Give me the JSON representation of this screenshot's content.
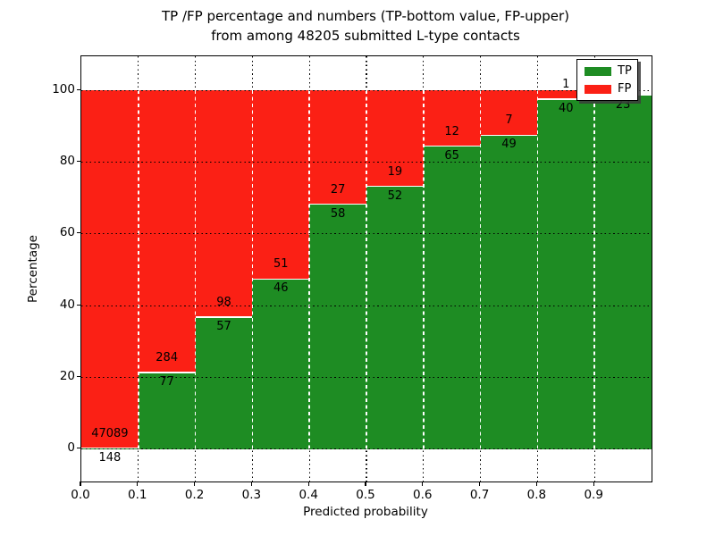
{
  "chart_data": {
    "type": "stacked-bar",
    "title_line1": "TP /FP percentage and numbers (TP-bottom value, FP-upper)",
    "title_line2": "from among 48205 submitted L-type contacts",
    "xlabel": "Predicted probability",
    "ylabel": "Percentage",
    "total_submitted_contacts": 48205,
    "xlim": [
      0,
      1.0
    ],
    "ylim": [
      -9.0,
      109.5
    ],
    "x_ticks": [
      {
        "value": 0.0,
        "label": "0.0"
      },
      {
        "value": 0.1,
        "label": "0.1"
      },
      {
        "value": 0.2,
        "label": "0.2"
      },
      {
        "value": 0.3,
        "label": "0.3"
      },
      {
        "value": 0.4,
        "label": "0.4"
      },
      {
        "value": 0.5,
        "label": "0.5"
      },
      {
        "value": 0.6,
        "label": "0.6"
      },
      {
        "value": 0.7,
        "label": "0.7"
      },
      {
        "value": 0.8,
        "label": "0.8"
      },
      {
        "value": 0.9,
        "label": "0.9"
      }
    ],
    "y_ticks": [
      {
        "value": 0,
        "label": "0"
      },
      {
        "value": 20,
        "label": "20"
      },
      {
        "value": 40,
        "label": "40"
      },
      {
        "value": 60,
        "label": "60"
      },
      {
        "value": 80,
        "label": "80"
      },
      {
        "value": 100,
        "label": "100"
      }
    ],
    "grid": true,
    "legend": {
      "position": "upper-right",
      "entries": [
        {
          "label": "TP",
          "color": "#1e8c23"
        },
        {
          "label": "FP",
          "color": "#fb2015"
        }
      ]
    },
    "colors": {
      "tp": "#1e8c23",
      "fp": "#fb2015",
      "segment_boundary": "#ffffff",
      "grid": "#000000"
    },
    "bins": [
      {
        "range": [
          0.0,
          0.1
        ],
        "tp": 148,
        "fp": 47089,
        "tp_label": "148",
        "fp_label": "47089",
        "tp_pct": 0.31,
        "bar_top_pct": 100
      },
      {
        "range": [
          0.1,
          0.2
        ],
        "tp": 77,
        "fp": 284,
        "tp_label": "77",
        "fp_label": "284",
        "tp_pct": 21.33,
        "bar_top_pct": 100
      },
      {
        "range": [
          0.2,
          0.3
        ],
        "tp": 57,
        "fp": 98,
        "tp_label": "57",
        "fp_label": "98",
        "tp_pct": 36.77,
        "bar_top_pct": 100
      },
      {
        "range": [
          0.3,
          0.4
        ],
        "tp": 46,
        "fp": 51,
        "tp_label": "46",
        "fp_label": "51",
        "tp_pct": 47.42,
        "bar_top_pct": 100
      },
      {
        "range": [
          0.4,
          0.5
        ],
        "tp": 58,
        "fp": 27,
        "tp_label": "58",
        "fp_label": "27",
        "tp_pct": 68.24,
        "bar_top_pct": 100
      },
      {
        "range": [
          0.5,
          0.6
        ],
        "tp": 52,
        "fp": 19,
        "tp_label": "52",
        "fp_label": "19",
        "tp_pct": 73.24,
        "bar_top_pct": 100
      },
      {
        "range": [
          0.6,
          0.7
        ],
        "tp": 65,
        "fp": 12,
        "tp_label": "65",
        "fp_label": "12",
        "tp_pct": 84.42,
        "bar_top_pct": 100
      },
      {
        "range": [
          0.7,
          0.8
        ],
        "tp": 49,
        "fp": 7,
        "tp_label": "49",
        "fp_label": "7",
        "tp_pct": 87.5,
        "bar_top_pct": 100
      },
      {
        "range": [
          0.8,
          0.9
        ],
        "tp": 40,
        "fp": 1,
        "tp_label": "40",
        "fp_label": "1",
        "tp_pct": 97.56,
        "bar_top_pct": 100
      },
      {
        "range": [
          0.9,
          1.0
        ],
        "tp": 23,
        "fp": null,
        "tp_label": "23",
        "fp_label": "",
        "tp_pct": 98.6,
        "bar_top_pct": 98.6
      }
    ]
  }
}
